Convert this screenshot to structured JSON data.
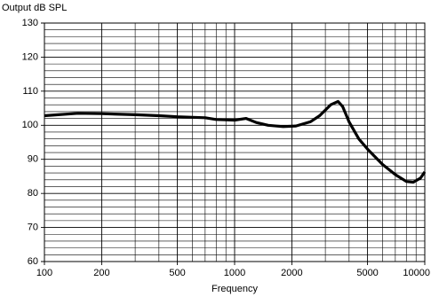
{
  "chart_data": {
    "type": "line",
    "title": "Output dB SPL",
    "xlabel": "Frequency",
    "xscale": "log",
    "x": [
      100,
      150,
      200,
      300,
      400,
      500,
      700,
      800,
      1000,
      1150,
      1300,
      1500,
      1800,
      2100,
      2500,
      2800,
      3200,
      3500,
      3700,
      4000,
      4500,
      5000,
      6000,
      7000,
      8000,
      8700,
      9500,
      10000
    ],
    "series": [
      {
        "name": "Output",
        "color": "#000000",
        "values": [
          102.8,
          103.5,
          103.4,
          103.1,
          102.8,
          102.5,
          102.2,
          101.7,
          101.5,
          102.0,
          100.8,
          100.0,
          99.6,
          99.8,
          101.0,
          102.8,
          106.0,
          107.0,
          105.5,
          101.0,
          96.0,
          93.0,
          88.5,
          85.5,
          83.5,
          83.3,
          84.5,
          86.3
        ]
      }
    ],
    "xlim": [
      100,
      10000
    ],
    "xticks": [
      100,
      200,
      500,
      1000,
      2000,
      5000,
      10000
    ],
    "xminor": [
      300,
      400,
      600,
      700,
      800,
      900,
      3000,
      4000,
      6000,
      7000,
      8000,
      9000
    ],
    "ylim": [
      60,
      130
    ],
    "yticks": [
      60,
      70,
      80,
      90,
      100,
      110,
      120,
      130
    ],
    "yminor": [
      62,
      64,
      66,
      68,
      72,
      74,
      76,
      78,
      82,
      84,
      86,
      88,
      92,
      94,
      96,
      98,
      102,
      104,
      106,
      108,
      112,
      114,
      116,
      118,
      122,
      124,
      126,
      128
    ],
    "grid": true
  }
}
